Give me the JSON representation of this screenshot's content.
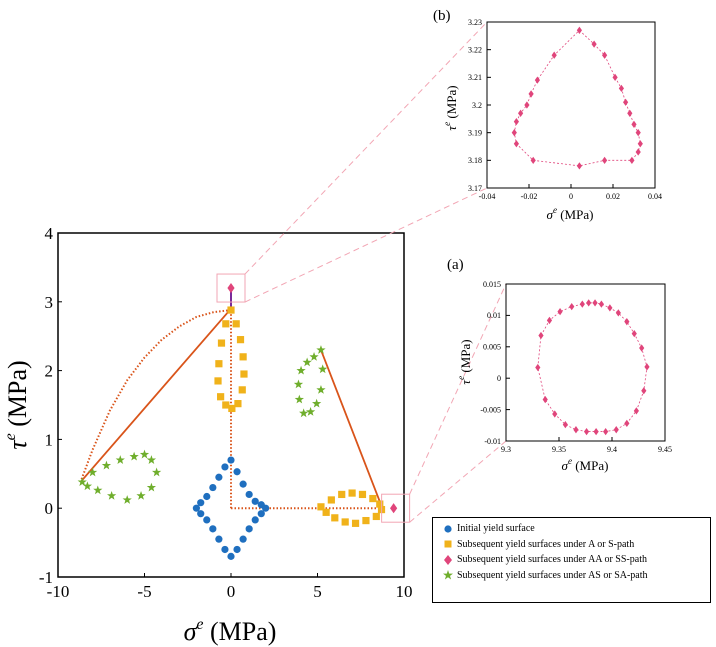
{
  "chart_data": [
    {
      "panel": "main",
      "type": "scatter",
      "title": "",
      "xlabel": "σ",
      "xlabel_sup": "e",
      "xlabel_unit": " (MPa)",
      "ylabel": "τ",
      "ylabel_sup": "e",
      "ylabel_unit": " (MPa)",
      "xlim": [
        -10,
        10
      ],
      "ylim": [
        -1,
        4
      ],
      "xticks": [
        -10,
        -5,
        0,
        5,
        10
      ],
      "yticks": [
        -1,
        0,
        1,
        2,
        3,
        4
      ],
      "xtick_labels": [
        "-10",
        "-5",
        "0",
        "5",
        "10"
      ],
      "ytick_labels": [
        "-1",
        "0",
        "1",
        "2",
        "3",
        "4"
      ],
      "grid": false,
      "legend_position": "bottom-right-outside",
      "series": [
        {
          "name": "Initial yield surface",
          "marker": "circle",
          "color": "#1f6fbf",
          "points": [
            [
              0,
              0.7
            ],
            [
              0.35,
              0.53
            ],
            [
              0.7,
              0.35
            ],
            [
              1.05,
              0.2
            ],
            [
              1.4,
              0.1
            ],
            [
              1.75,
              0.05
            ],
            [
              2.0,
              0.0
            ],
            [
              1.75,
              -0.08
            ],
            [
              1.4,
              -0.17
            ],
            [
              1.05,
              -0.3
            ],
            [
              0.7,
              -0.45
            ],
            [
              0.35,
              -0.6
            ],
            [
              0,
              -0.7
            ],
            [
              -0.35,
              -0.6
            ],
            [
              -0.7,
              -0.45
            ],
            [
              -1.05,
              -0.3
            ],
            [
              -1.4,
              -0.17
            ],
            [
              -1.75,
              -0.08
            ],
            [
              -2.0,
              0.0
            ],
            [
              -1.75,
              0.08
            ],
            [
              -1.4,
              0.17
            ],
            [
              -1.05,
              0.3
            ],
            [
              -0.7,
              0.45
            ],
            [
              -0.35,
              0.6
            ]
          ]
        },
        {
          "name": "Subsequent yield surfaces under A or S-path",
          "marker": "square",
          "color": "#f0b21a",
          "points": [
            [
              0,
              2.88
            ],
            [
              -0.3,
              2.68
            ],
            [
              -0.55,
              2.4
            ],
            [
              -0.7,
              2.1
            ],
            [
              -0.75,
              1.85
            ],
            [
              -0.6,
              1.62
            ],
            [
              -0.3,
              1.5
            ],
            [
              0.05,
              1.45
            ],
            [
              0.4,
              1.52
            ],
            [
              0.65,
              1.72
            ],
            [
              0.75,
              1.95
            ],
            [
              0.7,
              2.2
            ],
            [
              0.55,
              2.45
            ],
            [
              0.3,
              2.68
            ],
            [
              5.2,
              0.02
            ],
            [
              5.8,
              0.12
            ],
            [
              6.4,
              0.2
            ],
            [
              7.0,
              0.22
            ],
            [
              7.6,
              0.2
            ],
            [
              8.2,
              0.14
            ],
            [
              8.6,
              0.06
            ],
            [
              8.7,
              -0.02
            ],
            [
              8.4,
              -0.12
            ],
            [
              7.8,
              -0.18
            ],
            [
              7.2,
              -0.22
            ],
            [
              6.6,
              -0.2
            ],
            [
              6.0,
              -0.14
            ],
            [
              5.5,
              -0.06
            ]
          ]
        },
        {
          "name": "Subsequent yield surfaces under AA or SS-path",
          "marker": "diamond",
          "color": "#e0457b",
          "points": [
            [
              0,
              3.2
            ],
            [
              9.4,
              0.0
            ]
          ]
        },
        {
          "name": "Subsequent yield surfaces under AS or SA-path",
          "marker": "star",
          "color": "#6fae2c",
          "points": [
            [
              -8.6,
              0.38
            ],
            [
              -8.0,
              0.52
            ],
            [
              -7.2,
              0.62
            ],
            [
              -6.4,
              0.7
            ],
            [
              -5.6,
              0.75
            ],
            [
              -5.0,
              0.78
            ],
            [
              -4.6,
              0.7
            ],
            [
              -4.3,
              0.52
            ],
            [
              -4.6,
              0.3
            ],
            [
              -5.2,
              0.18
            ],
            [
              -6.0,
              0.12
            ],
            [
              -6.9,
              0.18
            ],
            [
              -7.7,
              0.26
            ],
            [
              -8.3,
              0.32
            ],
            [
              5.2,
              2.3
            ],
            [
              5.3,
              2.02
            ],
            [
              5.2,
              1.72
            ],
            [
              4.95,
              1.52
            ],
            [
              4.6,
              1.4
            ],
            [
              4.2,
              1.38
            ],
            [
              3.95,
              1.58
            ],
            [
              3.9,
              1.8
            ],
            [
              4.05,
              2.0
            ],
            [
              4.4,
              2.12
            ],
            [
              4.8,
              2.2
            ]
          ]
        }
      ],
      "loading_paths": {
        "color": "#d9541a",
        "style": "dotted",
        "paths": [
          [
            [
              0,
              0
            ],
            [
              0,
              2.9
            ]
          ],
          [
            [
              0,
              0
            ],
            [
              8.75,
              0
            ]
          ],
          [
            [
              0,
              2.88
            ],
            [
              -1,
              2.85
            ],
            [
              -2,
              2.78
            ],
            [
              -3,
              2.64
            ],
            [
              -4,
              2.45
            ],
            [
              -5,
              2.19
            ],
            [
              -6,
              1.86
            ],
            [
              -7,
              1.42
            ],
            [
              -8,
              0.85
            ],
            [
              -8.7,
              0.38
            ]
          ]
        ]
      },
      "solid_paths": {
        "color": "#d9541a",
        "paths": [
          [
            [
              -8.7,
              0.38
            ],
            [
              0,
              2.9
            ]
          ],
          [
            [
              5.2,
              2.3
            ],
            [
              8.75,
              0
            ]
          ]
        ]
      },
      "vertical_segment": {
        "color": "#7a2a9a",
        "from": [
          0,
          2.9
        ],
        "to": [
          0,
          3.2
        ]
      }
    },
    {
      "panel": "(b)",
      "label": "(b)",
      "type": "scatter",
      "xlabel": "σ",
      "xlabel_sup": "e",
      "xlabel_unit": " (MPa)",
      "ylabel": "τ",
      "ylabel_sup": "e",
      "ylabel_unit": " (MPa)",
      "xlim": [
        -0.04,
        0.04
      ],
      "ylim": [
        3.17,
        3.23
      ],
      "xticks": [
        -0.04,
        -0.02,
        0,
        0.02,
        0.04
      ],
      "yticks": [
        3.17,
        3.18,
        3.19,
        3.2,
        3.21,
        3.22,
        3.23
      ],
      "xtick_labels": [
        "-0.04",
        "-0.02",
        "0",
        "0.02",
        "0.04"
      ],
      "ytick_labels": [
        "3.17",
        "3.18",
        "3.19",
        "3.2",
        "3.21",
        "3.22",
        "3.23"
      ],
      "series": [
        {
          "name": "Subsequent yield surfaces under AA or SS-path",
          "marker": "diamond",
          "color": "#e0457b",
          "points": [
            [
              0.004,
              3.227
            ],
            [
              0.011,
              3.222
            ],
            [
              0.016,
              3.218
            ],
            [
              0.021,
              3.21
            ],
            [
              0.024,
              3.206
            ],
            [
              0.026,
              3.201
            ],
            [
              0.028,
              3.197
            ],
            [
              0.03,
              3.193
            ],
            [
              0.032,
              3.19
            ],
            [
              0.033,
              3.186
            ],
            [
              0.032,
              3.183
            ],
            [
              0.029,
              3.18
            ],
            [
              0.016,
              3.18
            ],
            [
              0.004,
              3.178
            ],
            [
              -0.018,
              3.18
            ],
            [
              -0.026,
              3.186
            ],
            [
              -0.027,
              3.19
            ],
            [
              -0.026,
              3.194
            ],
            [
              -0.024,
              3.197
            ],
            [
              -0.021,
              3.2
            ],
            [
              -0.019,
              3.204
            ],
            [
              -0.016,
              3.209
            ],
            [
              -0.008,
              3.218
            ]
          ]
        }
      ]
    },
    {
      "panel": "(a)",
      "label": "(a)",
      "type": "scatter",
      "xlabel": "σ",
      "xlabel_sup": "e",
      "xlabel_unit": " (MPa)",
      "ylabel": "τ",
      "ylabel_sup": "e",
      "ylabel_unit": " (MPa)",
      "xlim": [
        9.3,
        9.45
      ],
      "ylim": [
        -0.01,
        0.015
      ],
      "xticks": [
        9.3,
        9.35,
        9.4,
        9.45
      ],
      "yticks": [
        -0.01,
        -0.005,
        0,
        0.005,
        0.01,
        0.015
      ],
      "xtick_labels": [
        "9.3",
        "9.35",
        "9.4",
        "9.45"
      ],
      "ytick_labels": [
        "-0.01",
        "-0.005",
        "0",
        "0.005",
        "0.01",
        "0.015"
      ],
      "series": [
        {
          "name": "Subsequent yield surfaces under AA or SS-path",
          "marker": "diamond",
          "color": "#e0457b",
          "points": [
            [
              9.372,
              0.0118
            ],
            [
              9.378,
              0.012
            ],
            [
              9.384,
              0.012
            ],
            [
              9.39,
              0.0118
            ],
            [
              9.398,
              0.0112
            ],
            [
              9.406,
              0.0104
            ],
            [
              9.414,
              0.009
            ],
            [
              9.421,
              0.0071
            ],
            [
              9.428,
              0.0048
            ],
            [
              9.433,
              0.0018
            ],
            [
              9.43,
              -0.002
            ],
            [
              9.423,
              -0.0052
            ],
            [
              9.414,
              -0.0072
            ],
            [
              9.404,
              -0.0082
            ],
            [
              9.394,
              -0.0085
            ],
            [
              9.385,
              -0.0085
            ],
            [
              9.376,
              -0.0085
            ],
            [
              9.366,
              -0.0082
            ],
            [
              9.356,
              -0.0074
            ],
            [
              9.346,
              -0.0057
            ],
            [
              9.337,
              -0.0034
            ],
            [
              9.33,
              0.0017
            ],
            [
              9.333,
              0.0068
            ],
            [
              9.341,
              0.0092
            ],
            [
              9.351,
              0.0106
            ],
            [
              9.362,
              0.0114
            ]
          ]
        }
      ]
    }
  ],
  "legend": {
    "items": [
      {
        "label": "Initial yield surface",
        "marker": "circle",
        "color": "#1f6fbf"
      },
      {
        "label": "Subsequent yield surfaces under A or S-path",
        "marker": "square",
        "color": "#f0b21a"
      },
      {
        "label": "Subsequent yield surfaces under AA or SS-path",
        "marker": "diamond",
        "color": "#e0457b"
      },
      {
        "label": "Subsequent yield surfaces under AS or SA-path",
        "marker": "star",
        "color": "#6fae2c"
      }
    ]
  },
  "colors": {
    "zoom_box": "#f2a6b4",
    "path": "#d9541a",
    "vertical": "#7a2a9a"
  }
}
